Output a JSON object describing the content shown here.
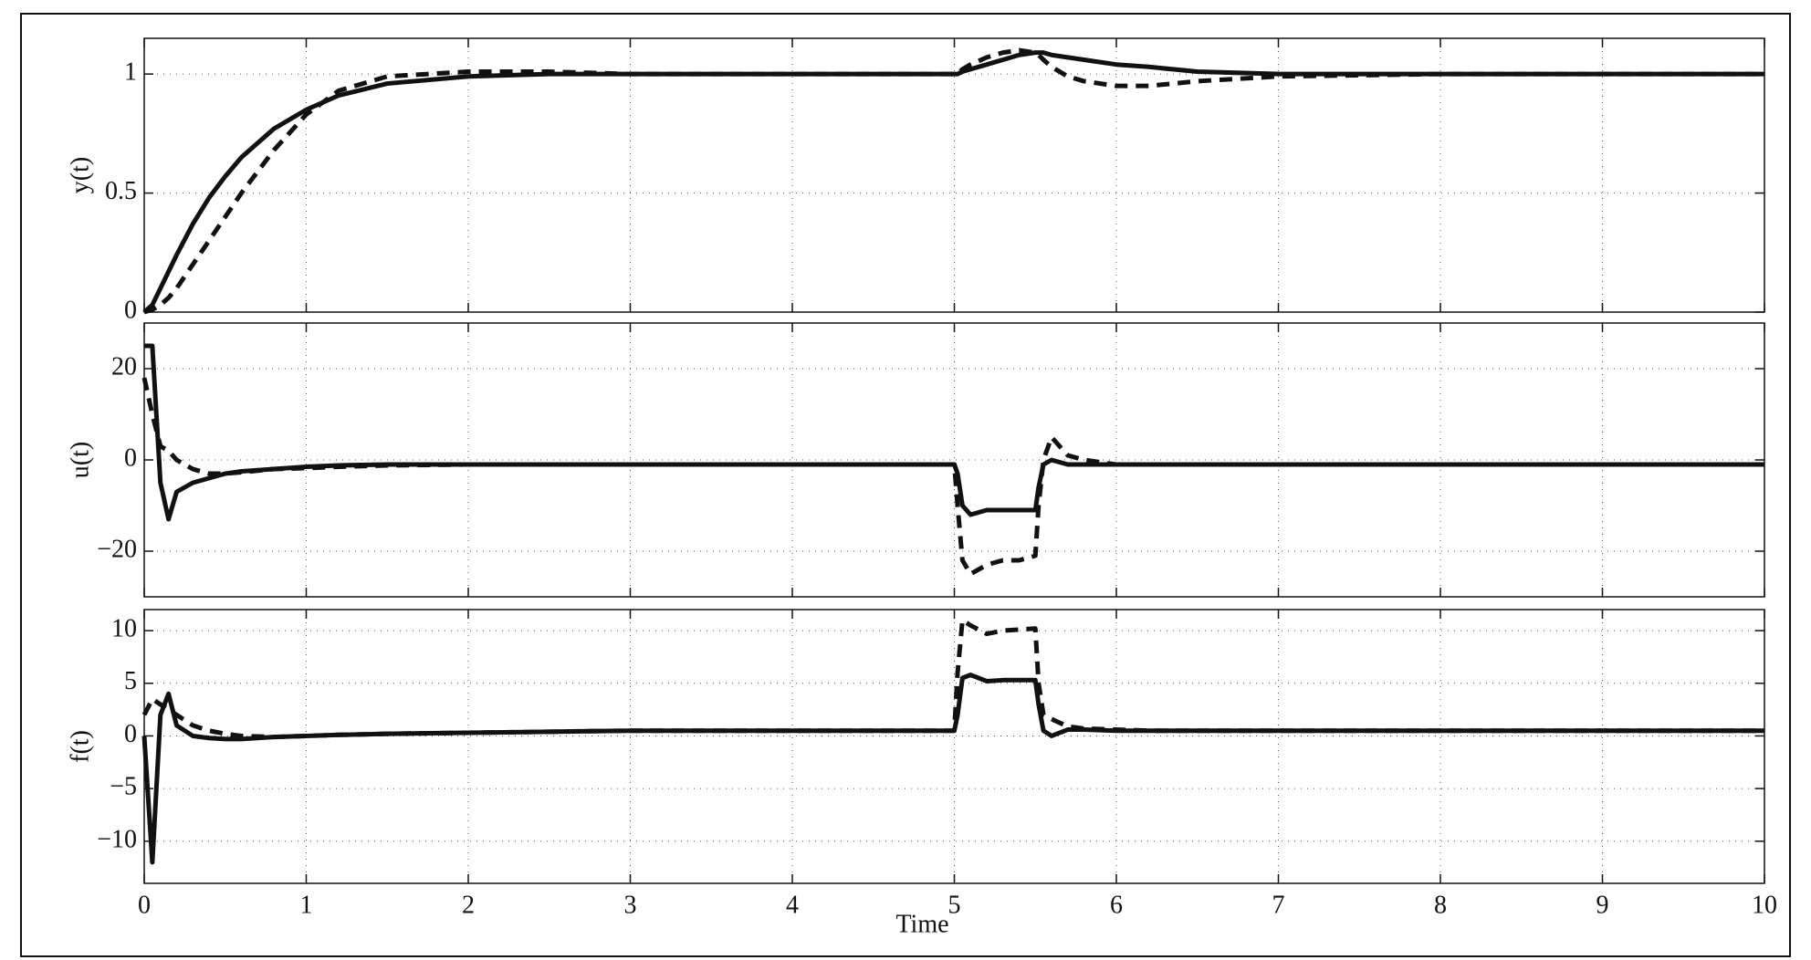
{
  "chart_data": [
    {
      "type": "line",
      "ylabel": "y(t)",
      "x": [
        0,
        0.05,
        0.1,
        0.15,
        0.2,
        0.3,
        0.4,
        0.5,
        0.6,
        0.8,
        1,
        1.2,
        1.5,
        2,
        2.5,
        3,
        4,
        5,
        5.02,
        5.05,
        5.1,
        5.2,
        5.3,
        5.4,
        5.5,
        5.52,
        5.55,
        5.6,
        5.7,
        5.8,
        6,
        6.2,
        6.5,
        7,
        8,
        9,
        10
      ],
      "series": [
        {
          "color": "#111111",
          "style": "solid",
          "values": [
            0,
            0.03,
            0.1,
            0.17,
            0.24,
            0.37,
            0.48,
            0.57,
            0.65,
            0.77,
            0.85,
            0.91,
            0.96,
            0.99,
            1,
            1,
            1,
            1,
            1,
            1.01,
            1.02,
            1.04,
            1.06,
            1.08,
            1.09,
            1.09,
            1.09,
            1.08,
            1.07,
            1.06,
            1.04,
            1.03,
            1.01,
            1,
            1,
            1,
            1
          ]
        },
        {
          "color": "#111111",
          "style": "dashed",
          "values": [
            0,
            0.01,
            0.03,
            0.06,
            0.1,
            0.2,
            0.3,
            0.4,
            0.5,
            0.68,
            0.83,
            0.93,
            0.99,
            1.01,
            1.01,
            1,
            1,
            1,
            1,
            1.02,
            1.04,
            1.07,
            1.09,
            1.1,
            1.09,
            1.08,
            1.06,
            1.03,
            0.99,
            0.97,
            0.95,
            0.95,
            0.97,
            0.99,
            1,
            1,
            1
          ]
        }
      ],
      "xlim": [
        0,
        10
      ],
      "xticks": [
        0,
        1,
        2,
        3,
        4,
        5,
        6,
        7,
        8,
        9,
        10
      ],
      "xtick_labels": false,
      "ylim": [
        0,
        1.15
      ],
      "yticks": [
        0,
        0.5,
        1
      ],
      "grid": true
    },
    {
      "type": "line",
      "ylabel": "u(t)",
      "x": [
        0,
        0.05,
        0.1,
        0.15,
        0.2,
        0.3,
        0.4,
        0.5,
        0.6,
        0.8,
        1,
        1.2,
        1.5,
        2,
        2.5,
        3,
        4,
        5,
        5.02,
        5.05,
        5.1,
        5.2,
        5.3,
        5.4,
        5.5,
        5.52,
        5.55,
        5.6,
        5.7,
        5.8,
        6,
        6.2,
        6.5,
        7,
        8,
        9,
        10
      ],
      "series": [
        {
          "color": "#111111",
          "style": "solid",
          "values": [
            25,
            25,
            -5,
            -13,
            -7,
            -5,
            -4,
            -3,
            -2.5,
            -2,
            -1.5,
            -1.2,
            -1,
            -1,
            -1,
            -1,
            -1,
            -1,
            -3,
            -10,
            -12,
            -11,
            -11,
            -11,
            -11,
            -6,
            -1,
            0,
            -1,
            -1,
            -1,
            -1,
            -1,
            -1,
            -1,
            -1,
            -1
          ]
        },
        {
          "color": "#111111",
          "style": "dashed",
          "values": [
            18,
            10,
            3,
            2,
            0,
            -2,
            -3,
            -3,
            -2.7,
            -2,
            -1.8,
            -1.5,
            -1.2,
            -1,
            -1,
            -1,
            -1,
            -1,
            -10,
            -22,
            -25,
            -23,
            -22,
            -22,
            -21,
            -10,
            0,
            5,
            1,
            0,
            -1,
            -1,
            -1,
            -1,
            -1,
            -1,
            -1
          ]
        }
      ],
      "xlim": [
        0,
        10
      ],
      "xticks": [
        0,
        1,
        2,
        3,
        4,
        5,
        6,
        7,
        8,
        9,
        10
      ],
      "xtick_labels": false,
      "ylim": [
        -30,
        30
      ],
      "yticks": [
        {
          "value": -20,
          "label": "−20"
        },
        0,
        20
      ],
      "grid": true
    },
    {
      "type": "line",
      "ylabel": "f(t)",
      "xlabel": "Time",
      "x": [
        0,
        0.05,
        0.1,
        0.15,
        0.2,
        0.3,
        0.4,
        0.5,
        0.6,
        0.8,
        1,
        1.2,
        1.5,
        2,
        2.5,
        3,
        4,
        5,
        5.02,
        5.05,
        5.1,
        5.2,
        5.3,
        5.4,
        5.5,
        5.52,
        5.55,
        5.6,
        5.7,
        5.8,
        6,
        6.2,
        6.5,
        7,
        8,
        9,
        10
      ],
      "series": [
        {
          "color": "#111111",
          "style": "solid",
          "values": [
            0,
            -12,
            2,
            4,
            1,
            0,
            -0.2,
            -0.3,
            -0.3,
            -0.1,
            0,
            0.1,
            0.2,
            0.3,
            0.4,
            0.5,
            0.5,
            0.5,
            2,
            5.5,
            5.8,
            5.2,
            5.3,
            5.3,
            5.3,
            3,
            0.5,
            0,
            0.6,
            0.6,
            0.5,
            0.5,
            0.5,
            0.5,
            0.5,
            0.5,
            0.5
          ]
        },
        {
          "color": "#111111",
          "style": "dashed",
          "values": [
            2,
            3.5,
            3,
            2.5,
            2,
            1,
            0.5,
            0.2,
            0,
            -0.1,
            0,
            0.1,
            0.2,
            0.3,
            0.4,
            0.5,
            0.5,
            0.5,
            6,
            11,
            10.5,
            9.7,
            10,
            10.1,
            10.2,
            5,
            2,
            1.6,
            0.9,
            0.7,
            0.6,
            0.5,
            0.5,
            0.5,
            0.5,
            0.5,
            0.5
          ]
        }
      ],
      "xlim": [
        0,
        10
      ],
      "xticks": [
        0,
        1,
        2,
        3,
        4,
        5,
        6,
        7,
        8,
        9,
        10
      ],
      "xtick_labels": true,
      "ylim": [
        -14,
        12
      ],
      "yticks": [
        {
          "value": -10,
          "label": "−10"
        },
        {
          "value": -5,
          "label": "−5"
        },
        0,
        5,
        10
      ],
      "grid": true
    }
  ]
}
